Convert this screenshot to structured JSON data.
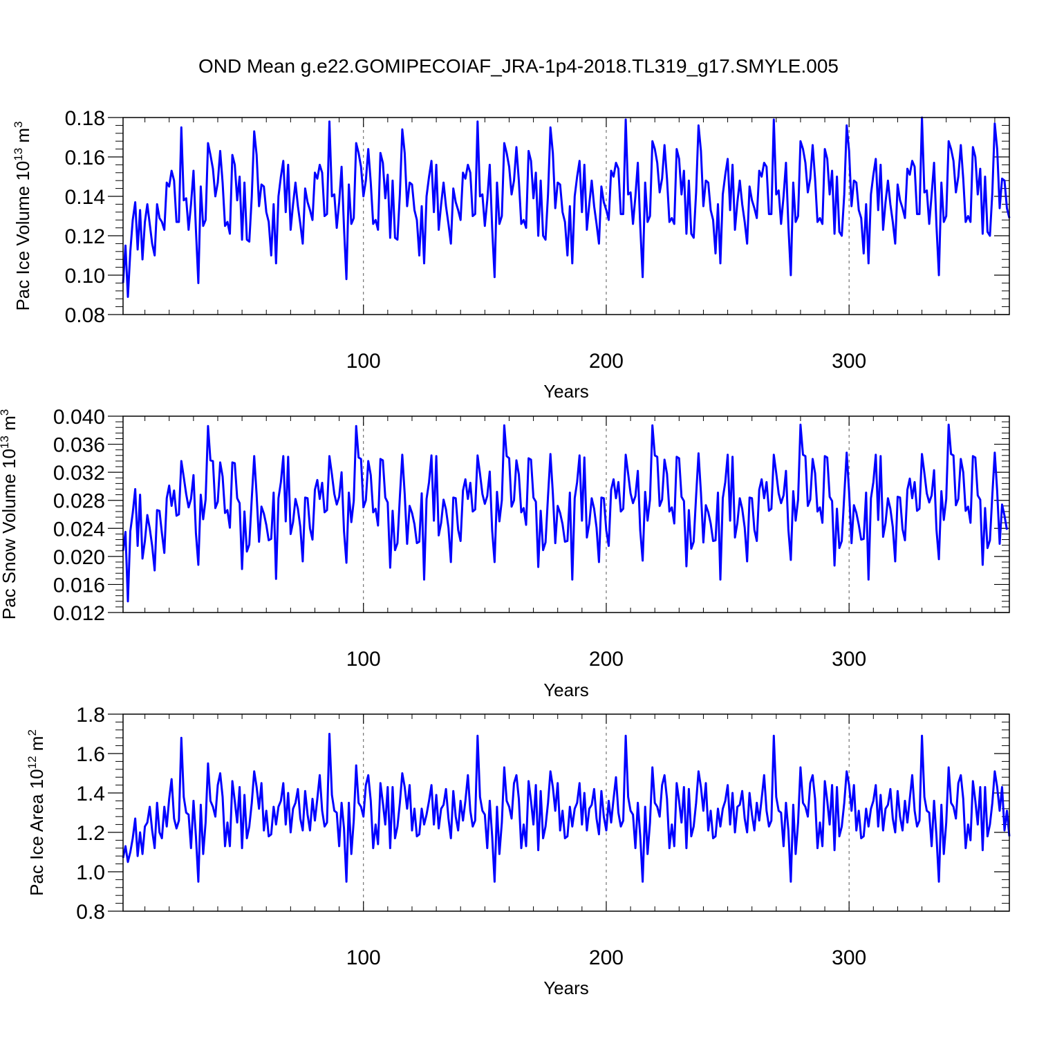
{
  "title": "OND Mean g.e22.GOMIPECOIAF_JRA-1p4-2018.TL319_g17.SMYLE.005",
  "colors": {
    "series": "#0000ff",
    "axis": "#000000",
    "grid": "#555555"
  },
  "chart_data": [
    {
      "type": "line",
      "ylabel_main": "Pac Ice Volume 10",
      "ylabel_sup": "13",
      "ylabel_unit": " m",
      "ylabel_unit_sup": "3",
      "xlabel": "Years",
      "xlim": [
        1,
        366
      ],
      "ylim": [
        0.08,
        0.18
      ],
      "xticks": [
        100,
        200,
        300
      ],
      "xtick_labels": [
        "100",
        "200",
        "300"
      ],
      "yticks": [
        0.08,
        0.1,
        0.12,
        0.14,
        0.16,
        0.18
      ],
      "ytick_labels": [
        "0.08",
        "0.10",
        "0.12",
        "0.14",
        "0.16",
        "0.18"
      ],
      "grid_x": [
        100,
        200,
        300
      ],
      "values": [
        0.096,
        0.115,
        0.089,
        0.112,
        0.128,
        0.137,
        0.113,
        0.133,
        0.108,
        0.127,
        0.136,
        0.126,
        0.116,
        0.11,
        0.136,
        0.129,
        0.127,
        0.123,
        0.147,
        0.145,
        0.153,
        0.148,
        0.127,
        0.127,
        0.175,
        0.138,
        0.139,
        0.123,
        0.136,
        0.153,
        0.123,
        0.096,
        0.145,
        0.125,
        0.128,
        0.167,
        0.161,
        0.154,
        0.14,
        0.147,
        0.163,
        0.147,
        0.125,
        0.127,
        0.121,
        0.161,
        0.156,
        0.138,
        0.15,
        0.118,
        0.147,
        0.118,
        0.117,
        0.14,
        0.173,
        0.161,
        0.135,
        0.146,
        0.145,
        0.132,
        0.127,
        0.11,
        0.136,
        0.106,
        0.14,
        0.15,
        0.158,
        0.132,
        0.156,
        0.123,
        0.136,
        0.147,
        0.135,
        0.126,
        0.116,
        0.144,
        0.137,
        0.133,
        0.128,
        0.152,
        0.149,
        0.156,
        0.152,
        0.13,
        0.131,
        0.178,
        0.14,
        0.141,
        0.124,
        0.137,
        0.155,
        0.124,
        0.098,
        0.146,
        0.126,
        0.129,
        0.167,
        0.162,
        0.155,
        0.14,
        0.148,
        0.164,
        0.147,
        0.126,
        0.128,
        0.123,
        0.162,
        0.157,
        0.139,
        0.151,
        0.119,
        0.148,
        0.119,
        0.118,
        0.141,
        0.174,
        0.162,
        0.135,
        0.147,
        0.146,
        0.133,
        0.128,
        0.11,
        0.135,
        0.106,
        0.14,
        0.15,
        0.158,
        0.132,
        0.156,
        0.123,
        0.136,
        0.147,
        0.135,
        0.126,
        0.116,
        0.144,
        0.137,
        0.133,
        0.128,
        0.152,
        0.149,
        0.156,
        0.152,
        0.13,
        0.131,
        0.178,
        0.14,
        0.141,
        0.125,
        0.138,
        0.156,
        0.124,
        0.099,
        0.147,
        0.126,
        0.13,
        0.167,
        0.162,
        0.155,
        0.141,
        0.148,
        0.165,
        0.148,
        0.126,
        0.128,
        0.124,
        0.163,
        0.158,
        0.139,
        0.152,
        0.12,
        0.148,
        0.12,
        0.118,
        0.141,
        0.175,
        0.162,
        0.134,
        0.147,
        0.146,
        0.132,
        0.127,
        0.11,
        0.135,
        0.106,
        0.14,
        0.15,
        0.158,
        0.132,
        0.156,
        0.123,
        0.136,
        0.148,
        0.135,
        0.126,
        0.116,
        0.145,
        0.137,
        0.133,
        0.128,
        0.153,
        0.15,
        0.157,
        0.154,
        0.131,
        0.131,
        0.179,
        0.141,
        0.142,
        0.126,
        0.14,
        0.157,
        0.125,
        0.099,
        0.147,
        0.127,
        0.13,
        0.168,
        0.164,
        0.157,
        0.142,
        0.149,
        0.166,
        0.149,
        0.127,
        0.129,
        0.126,
        0.164,
        0.159,
        0.141,
        0.153,
        0.121,
        0.148,
        0.121,
        0.119,
        0.142,
        0.176,
        0.163,
        0.135,
        0.148,
        0.147,
        0.133,
        0.128,
        0.111,
        0.136,
        0.106,
        0.141,
        0.151,
        0.159,
        0.133,
        0.156,
        0.123,
        0.137,
        0.148,
        0.136,
        0.127,
        0.116,
        0.145,
        0.138,
        0.134,
        0.129,
        0.153,
        0.15,
        0.157,
        0.155,
        0.131,
        0.131,
        0.179,
        0.141,
        0.143,
        0.126,
        0.14,
        0.157,
        0.125,
        0.1,
        0.147,
        0.127,
        0.13,
        0.168,
        0.164,
        0.157,
        0.142,
        0.149,
        0.166,
        0.149,
        0.127,
        0.129,
        0.126,
        0.164,
        0.159,
        0.141,
        0.153,
        0.121,
        0.15,
        0.122,
        0.12,
        0.141,
        0.176,
        0.163,
        0.135,
        0.148,
        0.147,
        0.133,
        0.129,
        0.111,
        0.136,
        0.106,
        0.141,
        0.151,
        0.159,
        0.133,
        0.156,
        0.123,
        0.137,
        0.148,
        0.136,
        0.127,
        0.116,
        0.146,
        0.138,
        0.134,
        0.129,
        0.154,
        0.151,
        0.158,
        0.155,
        0.131,
        0.131,
        0.18,
        0.142,
        0.143,
        0.126,
        0.141,
        0.157,
        0.125,
        0.1,
        0.147,
        0.127,
        0.13,
        0.168,
        0.164,
        0.158,
        0.142,
        0.15,
        0.166,
        0.149,
        0.127,
        0.13,
        0.127,
        0.165,
        0.16,
        0.141,
        0.154,
        0.121,
        0.15,
        0.122,
        0.12,
        0.142,
        0.177,
        0.164,
        0.134,
        0.149,
        0.148,
        0.134,
        0.129
      ]
    },
    {
      "type": "line",
      "ylabel_main": "Pac Snow Volume 10",
      "ylabel_sup": "13",
      "ylabel_unit": " m",
      "ylabel_unit_sup": "3",
      "xlabel": "Years",
      "xlim": [
        1,
        366
      ],
      "ylim": [
        0.012,
        0.04
      ],
      "xticks": [
        100,
        200,
        300
      ],
      "xtick_labels": [
        "100",
        "200",
        "300"
      ],
      "yticks": [
        0.012,
        0.016,
        0.02,
        0.024,
        0.028,
        0.032,
        0.036,
        0.04
      ],
      "ytick_labels": [
        "0.012",
        "0.016",
        "0.020",
        "0.024",
        "0.028",
        "0.032",
        "0.036",
        "0.040"
      ],
      "grid_x": [
        100,
        200,
        300
      ],
      "values": [
        0.0208,
        0.0235,
        0.0136,
        0.0236,
        0.0262,
        0.0296,
        0.0215,
        0.0288,
        0.0197,
        0.0222,
        0.0259,
        0.024,
        0.0215,
        0.018,
        0.0266,
        0.0265,
        0.0233,
        0.0205,
        0.0283,
        0.0301,
        0.0272,
        0.0294,
        0.0258,
        0.026,
        0.0336,
        0.0313,
        0.0289,
        0.027,
        0.0282,
        0.0316,
        0.0233,
        0.0188,
        0.0288,
        0.0253,
        0.0281,
        0.0386,
        0.0337,
        0.0336,
        0.0269,
        0.0278,
        0.0334,
        0.0314,
        0.0262,
        0.0266,
        0.0241,
        0.0334,
        0.0333,
        0.0283,
        0.0276,
        0.0182,
        0.0264,
        0.0207,
        0.0217,
        0.0283,
        0.0343,
        0.0288,
        0.0221,
        0.0271,
        0.0261,
        0.0245,
        0.0223,
        0.0225,
        0.0291,
        0.0168,
        0.0283,
        0.0306,
        0.0343,
        0.025,
        0.0342,
        0.0232,
        0.0249,
        0.0282,
        0.0268,
        0.0242,
        0.0193,
        0.0284,
        0.0283,
        0.024,
        0.0224,
        0.0295,
        0.0309,
        0.0282,
        0.0305,
        0.0263,
        0.0266,
        0.0343,
        0.0317,
        0.0289,
        0.0274,
        0.0285,
        0.032,
        0.0236,
        0.0191,
        0.0291,
        0.0249,
        0.0279,
        0.0386,
        0.0341,
        0.0339,
        0.027,
        0.028,
        0.0336,
        0.0316,
        0.0263,
        0.0268,
        0.0244,
        0.0339,
        0.0337,
        0.0284,
        0.0277,
        0.0184,
        0.0265,
        0.0209,
        0.0219,
        0.0285,
        0.0345,
        0.0289,
        0.0218,
        0.0272,
        0.0262,
        0.0246,
        0.0219,
        0.0221,
        0.029,
        0.0167,
        0.0282,
        0.0306,
        0.0344,
        0.0251,
        0.0343,
        0.023,
        0.0248,
        0.0281,
        0.0267,
        0.0241,
        0.0192,
        0.0284,
        0.0283,
        0.0238,
        0.0222,
        0.0294,
        0.031,
        0.0282,
        0.0305,
        0.0264,
        0.0267,
        0.0344,
        0.0318,
        0.0289,
        0.0275,
        0.0286,
        0.0321,
        0.0237,
        0.0192,
        0.0292,
        0.025,
        0.028,
        0.0387,
        0.0343,
        0.034,
        0.0271,
        0.028,
        0.0337,
        0.0317,
        0.0263,
        0.0269,
        0.0245,
        0.034,
        0.0338,
        0.0284,
        0.0278,
        0.0185,
        0.0265,
        0.0209,
        0.022,
        0.0286,
        0.0346,
        0.029,
        0.0219,
        0.0272,
        0.0262,
        0.0246,
        0.0221,
        0.0222,
        0.0291,
        0.0167,
        0.0283,
        0.0306,
        0.0344,
        0.0251,
        0.0341,
        0.0227,
        0.0247,
        0.0283,
        0.0268,
        0.0241,
        0.0192,
        0.0284,
        0.0283,
        0.0237,
        0.0215,
        0.0295,
        0.031,
        0.0283,
        0.0306,
        0.0264,
        0.0268,
        0.0345,
        0.0318,
        0.029,
        0.0276,
        0.0286,
        0.0322,
        0.0237,
        0.0194,
        0.0292,
        0.0251,
        0.0281,
        0.0387,
        0.0344,
        0.0342,
        0.0272,
        0.0281,
        0.0338,
        0.0318,
        0.0264,
        0.027,
        0.0247,
        0.0342,
        0.034,
        0.0285,
        0.0279,
        0.0186,
        0.0266,
        0.0211,
        0.0221,
        0.0286,
        0.0347,
        0.0291,
        0.022,
        0.0273,
        0.0263,
        0.0247,
        0.0222,
        0.0223,
        0.0291,
        0.0167,
        0.0283,
        0.0306,
        0.0345,
        0.0251,
        0.0342,
        0.0227,
        0.0248,
        0.0283,
        0.0268,
        0.0241,
        0.0193,
        0.0284,
        0.0283,
        0.0238,
        0.0222,
        0.0295,
        0.031,
        0.0283,
        0.0306,
        0.0265,
        0.0268,
        0.0345,
        0.0319,
        0.029,
        0.0276,
        0.0287,
        0.0322,
        0.0238,
        0.0195,
        0.0293,
        0.0251,
        0.0281,
        0.0388,
        0.0345,
        0.0343,
        0.0272,
        0.0281,
        0.0339,
        0.0319,
        0.0264,
        0.027,
        0.0248,
        0.0343,
        0.0341,
        0.0285,
        0.0279,
        0.0187,
        0.0268,
        0.0212,
        0.0222,
        0.0287,
        0.0348,
        0.0292,
        0.0219,
        0.0273,
        0.0262,
        0.0245,
        0.0224,
        0.0225,
        0.0291,
        0.0167,
        0.0283,
        0.0306,
        0.0345,
        0.0252,
        0.0343,
        0.0228,
        0.0248,
        0.0283,
        0.0268,
        0.0242,
        0.0193,
        0.0285,
        0.0284,
        0.0239,
        0.0223,
        0.0295,
        0.0311,
        0.0283,
        0.0306,
        0.0265,
        0.0268,
        0.0346,
        0.0319,
        0.029,
        0.0277,
        0.0287,
        0.0323,
        0.0238,
        0.0196,
        0.0293,
        0.0252,
        0.0282,
        0.0388,
        0.0346,
        0.0344,
        0.0273,
        0.0282,
        0.0339,
        0.032,
        0.0265,
        0.0271,
        0.0248,
        0.0343,
        0.0341,
        0.0287,
        0.0281,
        0.0188,
        0.0269,
        0.0212,
        0.0223,
        0.0288,
        0.0348,
        0.0293,
        0.0218,
        0.0274,
        0.0258,
        0.0238
      ]
    },
    {
      "type": "line",
      "ylabel_main": "Pac Ice Area 10",
      "ylabel_sup": "12",
      "ylabel_unit": " m",
      "ylabel_unit_sup": "2",
      "xlabel": "Years",
      "xlim": [
        1,
        366
      ],
      "ylim": [
        0.8,
        1.8
      ],
      "xticks": [
        100,
        200,
        300
      ],
      "xtick_labels": [
        "100",
        "200",
        "300"
      ],
      "yticks": [
        0.8,
        1.0,
        1.2,
        1.4,
        1.6,
        1.8
      ],
      "ytick_labels": [
        "0.8",
        "1.0",
        "1.2",
        "1.4",
        "1.6",
        "1.8"
      ],
      "grid_x": [
        100,
        200,
        300
      ],
      "values": [
        1.07,
        1.13,
        1.05,
        1.1,
        1.17,
        1.27,
        1.08,
        1.2,
        1.09,
        1.23,
        1.25,
        1.33,
        1.21,
        1.12,
        1.35,
        1.2,
        1.17,
        1.33,
        1.23,
        1.37,
        1.47,
        1.27,
        1.22,
        1.26,
        1.68,
        1.38,
        1.3,
        1.29,
        1.12,
        1.36,
        1.18,
        0.95,
        1.34,
        1.09,
        1.25,
        1.55,
        1.36,
        1.33,
        1.28,
        1.44,
        1.5,
        1.38,
        1.13,
        1.25,
        1.13,
        1.46,
        1.36,
        1.25,
        1.43,
        1.12,
        1.39,
        1.17,
        1.23,
        1.35,
        1.51,
        1.43,
        1.32,
        1.45,
        1.21,
        1.31,
        1.18,
        1.19,
        1.33,
        1.24,
        1.33,
        1.36,
        1.45,
        1.24,
        1.4,
        1.2,
        1.32,
        1.35,
        1.42,
        1.27,
        1.21,
        1.41,
        1.29,
        1.21,
        1.37,
        1.26,
        1.37,
        1.49,
        1.31,
        1.23,
        1.25,
        1.7,
        1.39,
        1.31,
        1.3,
        1.13,
        1.35,
        1.22,
        0.95,
        1.35,
        1.09,
        1.26,
        1.54,
        1.35,
        1.33,
        1.28,
        1.44,
        1.49,
        1.36,
        1.12,
        1.24,
        1.14,
        1.45,
        1.35,
        1.24,
        1.43,
        1.12,
        1.43,
        1.17,
        1.23,
        1.35,
        1.5,
        1.43,
        1.32,
        1.44,
        1.21,
        1.32,
        1.18,
        1.19,
        1.32,
        1.24,
        1.29,
        1.36,
        1.44,
        1.24,
        1.39,
        1.22,
        1.32,
        1.34,
        1.42,
        1.27,
        1.17,
        1.41,
        1.28,
        1.21,
        1.36,
        1.26,
        1.36,
        1.49,
        1.31,
        1.23,
        1.26,
        1.69,
        1.38,
        1.31,
        1.29,
        1.12,
        1.36,
        1.18,
        0.95,
        1.33,
        1.09,
        1.25,
        1.53,
        1.36,
        1.33,
        1.27,
        1.45,
        1.49,
        1.37,
        1.12,
        1.24,
        1.13,
        1.46,
        1.36,
        1.24,
        1.44,
        1.11,
        1.41,
        1.17,
        1.23,
        1.35,
        1.51,
        1.43,
        1.31,
        1.45,
        1.21,
        1.31,
        1.17,
        1.18,
        1.33,
        1.23,
        1.32,
        1.35,
        1.45,
        1.24,
        1.4,
        1.21,
        1.32,
        1.34,
        1.42,
        1.27,
        1.19,
        1.41,
        1.28,
        1.21,
        1.36,
        1.25,
        1.37,
        1.48,
        1.3,
        1.23,
        1.26,
        1.69,
        1.38,
        1.31,
        1.29,
        1.12,
        1.35,
        1.18,
        0.95,
        1.33,
        1.09,
        1.25,
        1.53,
        1.35,
        1.33,
        1.28,
        1.44,
        1.49,
        1.37,
        1.12,
        1.24,
        1.13,
        1.45,
        1.36,
        1.25,
        1.43,
        1.12,
        1.42,
        1.18,
        1.23,
        1.35,
        1.51,
        1.43,
        1.31,
        1.45,
        1.21,
        1.31,
        1.17,
        1.18,
        1.32,
        1.23,
        1.32,
        1.36,
        1.44,
        1.24,
        1.4,
        1.2,
        1.33,
        1.34,
        1.41,
        1.27,
        1.2,
        1.4,
        1.29,
        1.21,
        1.35,
        1.26,
        1.37,
        1.49,
        1.31,
        1.23,
        1.26,
        1.69,
        1.38,
        1.31,
        1.3,
        1.13,
        1.35,
        1.21,
        0.95,
        1.34,
        1.09,
        1.25,
        1.53,
        1.35,
        1.33,
        1.28,
        1.45,
        1.49,
        1.37,
        1.12,
        1.25,
        1.13,
        1.46,
        1.36,
        1.24,
        1.44,
        1.11,
        1.43,
        1.18,
        1.23,
        1.35,
        1.51,
        1.44,
        1.31,
        1.44,
        1.21,
        1.31,
        1.17,
        1.18,
        1.32,
        1.23,
        1.32,
        1.36,
        1.44,
        1.23,
        1.39,
        1.21,
        1.32,
        1.34,
        1.42,
        1.27,
        1.2,
        1.41,
        1.28,
        1.21,
        1.36,
        1.25,
        1.37,
        1.49,
        1.31,
        1.23,
        1.26,
        1.69,
        1.38,
        1.31,
        1.3,
        1.13,
        1.36,
        1.18,
        0.95,
        1.34,
        1.09,
        1.25,
        1.53,
        1.35,
        1.33,
        1.27,
        1.45,
        1.49,
        1.37,
        1.12,
        1.24,
        1.16,
        1.46,
        1.36,
        1.24,
        1.43,
        1.11,
        1.43,
        1.18,
        1.24,
        1.35,
        1.51,
        1.43,
        1.31,
        1.43,
        1.21,
        1.31,
        1.18
      ]
    }
  ]
}
